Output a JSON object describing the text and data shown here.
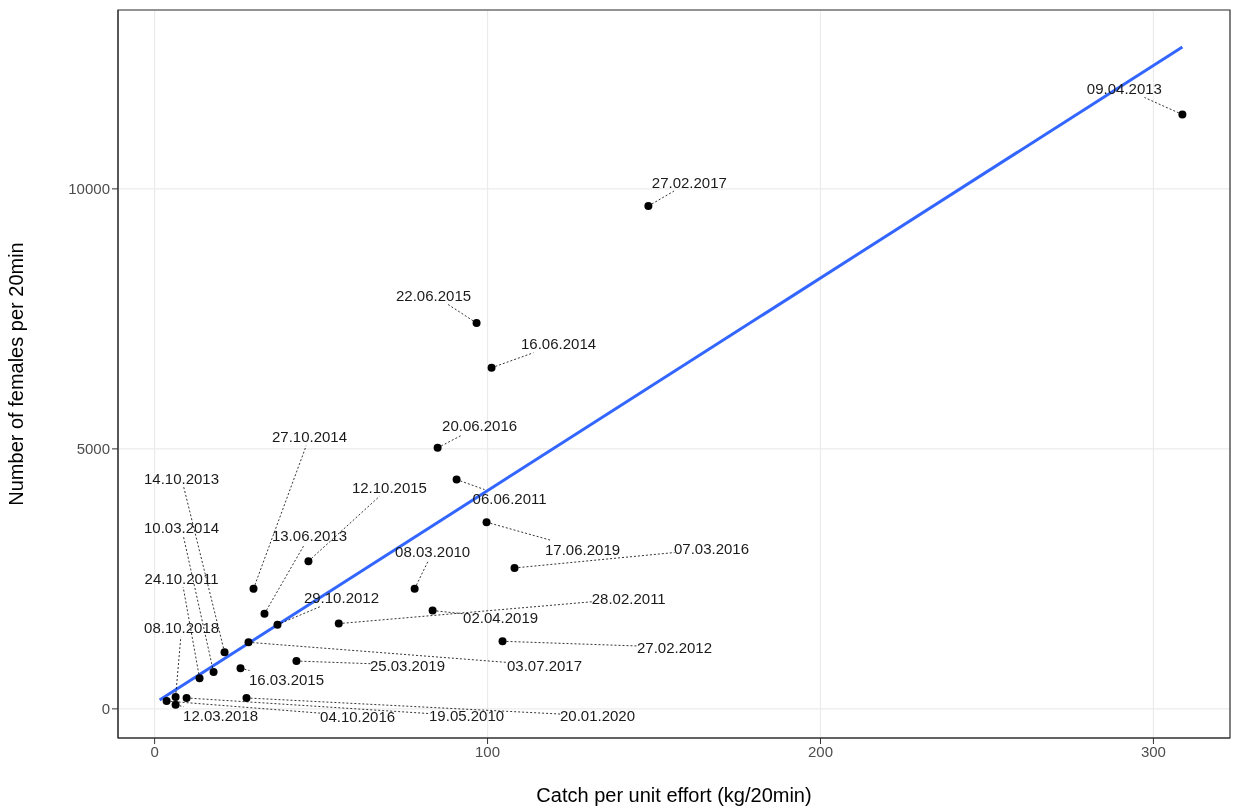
{
  "chart_data": {
    "type": "scatter",
    "xlabel": "Catch per unit effort (kg/20min)",
    "ylabel": "Number of females per 20min",
    "xlim": [
      -11,
      323
    ],
    "ylim": [
      -560,
      13440
    ],
    "xticks": [
      0,
      100,
      200,
      300
    ],
    "yticks": [
      0,
      5000,
      10000
    ],
    "grid": true,
    "series": [
      {
        "marker": "circle",
        "color": "#000000",
        "x": [
          308.7,
          148.3,
          96.7,
          101.2,
          85,
          90.7,
          99.7,
          108.1,
          78.1,
          46.2,
          33.0,
          29.7,
          36.9,
          55.3,
          83.5,
          104.5,
          28.2,
          42.6,
          25.8,
          21.0,
          17.7,
          13.5,
          6.3,
          6.3,
          3.6,
          9.6,
          27.6
        ],
        "values": [
          11430,
          9670,
          7420,
          6560,
          5020,
          4410,
          3590,
          2710,
          2310,
          2840,
          1830,
          2310,
          1620,
          1640,
          1890,
          1300,
          1280,
          920,
          780,
          1090,
          710,
          590,
          230,
          80,
          150,
          210,
          210
        ],
        "value_labels": [
          "09.04.2013",
          "27.02.2017",
          "22.06.2015",
          "16.06.2014",
          "20.06.2016",
          "06.06.2011",
          "17.06.2019",
          "07.03.2016",
          "08.03.2010",
          "12.10.2015",
          "13.06.2013",
          "27.10.2014",
          "29.10.2012",
          "28.02.2011",
          "02.04.2019",
          "27.02.2012",
          "03.07.2017",
          "25.03.2019",
          "16.03.2015",
          "14.10.2013",
          "10.03.2014",
          "24.10.2011",
          "08.10.2018",
          "12.03.2018",
          "04.10.2016",
          "19.05.2010",
          "20.01.2020"
        ]
      },
      {
        "type": "line",
        "color": "#3366ff",
        "x": [
          1.5,
          308.7
        ],
        "values": [
          170,
          12730
        ],
        "line_style": "solid"
      }
    ]
  }
}
